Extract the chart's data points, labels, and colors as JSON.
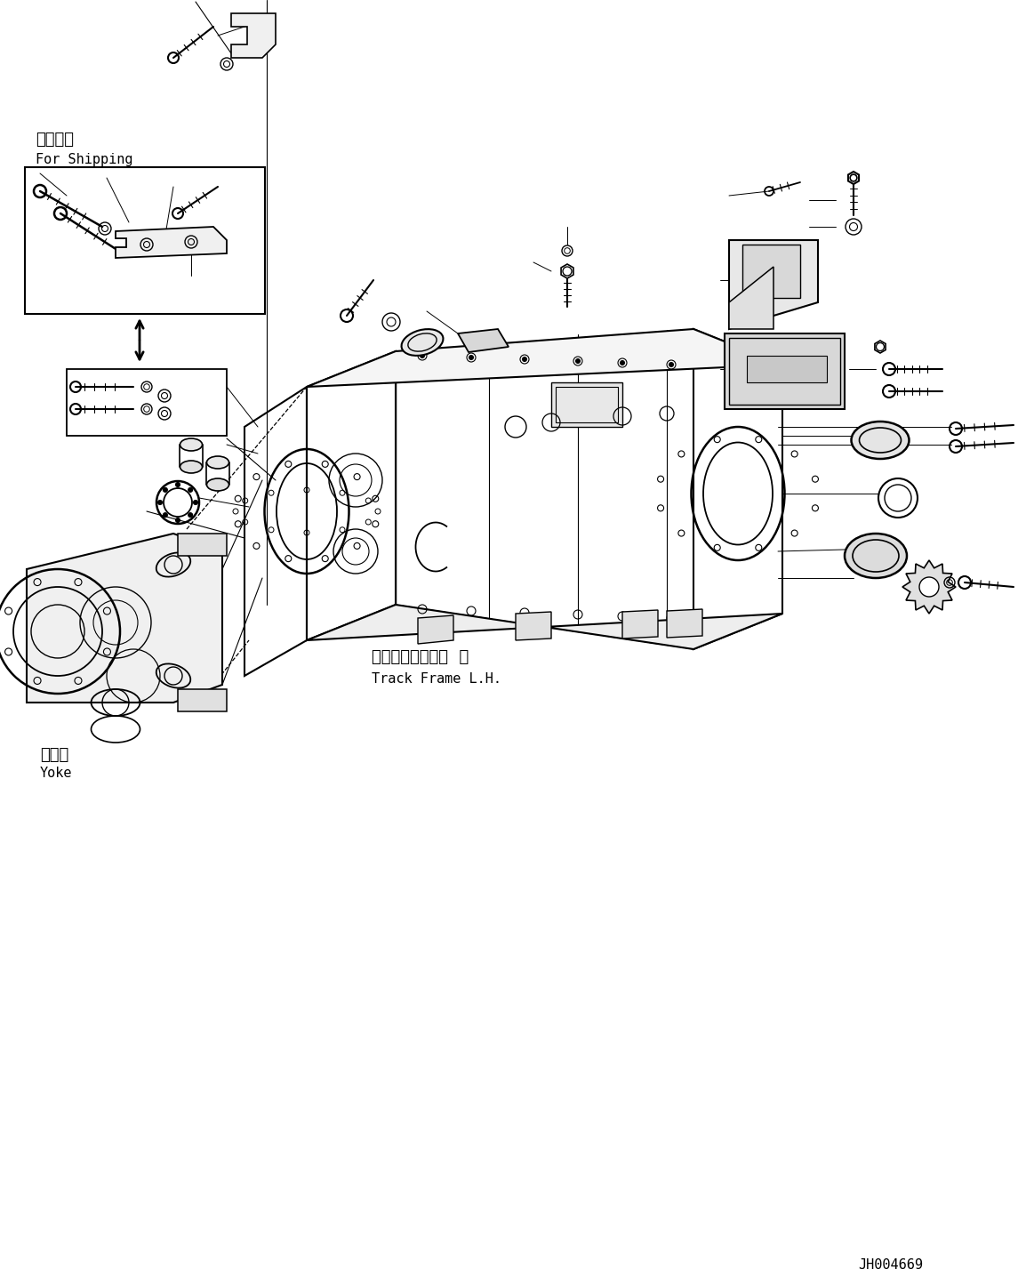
{
  "background_color": "#ffffff",
  "fig_width": 11.63,
  "fig_height": 14.36,
  "part_id": "JH004669",
  "labels": {
    "shipping_jp": "運搬部品",
    "shipping_en": "For Shipping",
    "track_frame_jp": "トラックフレーム  左",
    "track_frame_en": "Track Frame L.H.",
    "yoke_jp": "ヨーク",
    "yoke_en": "Yoke"
  }
}
